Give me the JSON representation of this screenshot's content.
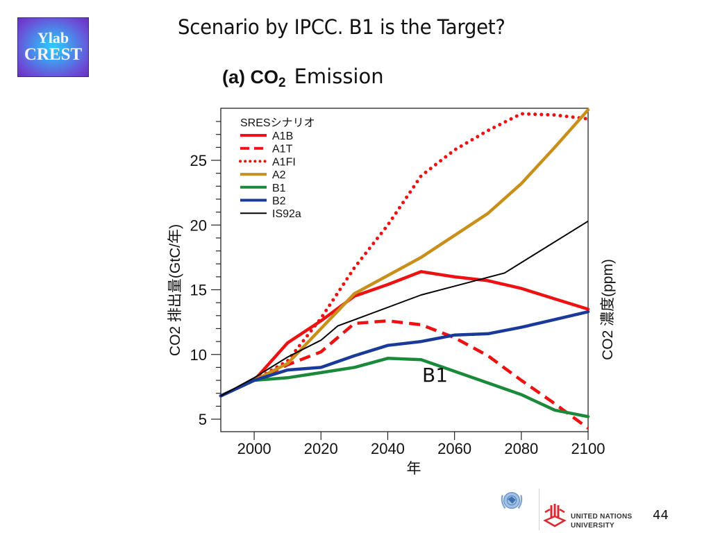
{
  "logo": {
    "line1": "Ylab",
    "line2": "CREST"
  },
  "slide": {
    "title": "Scenario by IPCC.  B1 is the Target?",
    "subtitle_prefix": "(a) CO",
    "subtitle_sub": "2",
    "subtitle_suffix": "Emission",
    "page_number": "44"
  },
  "footer": {
    "org_line1": "UNITED NATIONS",
    "org_line2": "UNIVERSITY"
  },
  "chart_data": {
    "type": "line",
    "title": "(a) CO2 Emission",
    "xlabel": "年",
    "ylabel": "CO2 排出量(GtC/年)",
    "ylabel_right": "CO2 濃度(ppm)",
    "xlim": [
      1990,
      2100
    ],
    "ylim": [
      4,
      29
    ],
    "xticks": [
      2000,
      2020,
      2040,
      2060,
      2080,
      2100
    ],
    "yticks": [
      5,
      10,
      15,
      20,
      25
    ],
    "grid": false,
    "legend_title": "SRESシナリオ",
    "legend_position": "top-left",
    "annotations": [
      {
        "text": "B1",
        "x": 2057,
        "y": 8.5
      }
    ],
    "series": [
      {
        "name": "A1B",
        "color": "#ee1111",
        "style": "solid",
        "x": [
          1990,
          2000,
          2010,
          2020,
          2030,
          2040,
          2050,
          2060,
          2070,
          2080,
          2090,
          2100
        ],
        "y": [
          6.8,
          8.0,
          10.9,
          12.6,
          14.5,
          15.4,
          16.4,
          16.0,
          15.7,
          15.1,
          14.3,
          13.5
        ]
      },
      {
        "name": "A1T",
        "color": "#ee1111",
        "style": "dashed",
        "x": [
          1990,
          2000,
          2010,
          2020,
          2030,
          2040,
          2050,
          2060,
          2070,
          2080,
          2090,
          2100
        ],
        "y": [
          6.8,
          8.0,
          9.2,
          10.2,
          12.4,
          12.6,
          12.3,
          11.3,
          9.9,
          8.0,
          6.2,
          4.3
        ]
      },
      {
        "name": "A1FI",
        "color": "#ee1111",
        "style": "dotted",
        "x": [
          1990,
          2000,
          2010,
          2020,
          2030,
          2040,
          2050,
          2060,
          2070,
          2080,
          2090,
          2100
        ],
        "y": [
          6.8,
          8.0,
          9.5,
          12.8,
          16.7,
          20.0,
          23.8,
          25.8,
          27.3,
          28.6,
          28.5,
          28.2
        ]
      },
      {
        "name": "A2",
        "color": "#c8901a",
        "style": "solid",
        "x": [
          1990,
          2000,
          2010,
          2020,
          2030,
          2040,
          2050,
          2060,
          2070,
          2080,
          2090,
          2100
        ],
        "y": [
          6.8,
          8.0,
          9.3,
          12.0,
          14.7,
          16.1,
          17.5,
          19.2,
          20.9,
          23.2,
          26.0,
          28.9
        ]
      },
      {
        "name": "B1",
        "color": "#1a8a3a",
        "style": "solid",
        "x": [
          1990,
          2000,
          2010,
          2020,
          2030,
          2040,
          2050,
          2060,
          2070,
          2080,
          2090,
          2100
        ],
        "y": [
          6.8,
          8.0,
          8.2,
          8.6,
          9.0,
          9.7,
          9.6,
          8.7,
          7.8,
          6.9,
          5.7,
          5.2
        ]
      },
      {
        "name": "B2",
        "color": "#1a3a9a",
        "style": "solid",
        "x": [
          1990,
          2000,
          2010,
          2020,
          2030,
          2040,
          2050,
          2060,
          2070,
          2080,
          2090,
          2100
        ],
        "y": [
          6.8,
          8.0,
          8.8,
          9.0,
          9.9,
          10.7,
          11.0,
          11.5,
          11.6,
          12.1,
          12.7,
          13.3
        ]
      },
      {
        "name": "IS92a",
        "color": "#000000",
        "style": "thin",
        "x": [
          1990,
          2000,
          2010,
          2020,
          2025,
          2050,
          2075,
          2100
        ],
        "y": [
          6.8,
          8.2,
          9.8,
          11.1,
          12.2,
          14.6,
          16.3,
          20.3
        ]
      }
    ]
  }
}
